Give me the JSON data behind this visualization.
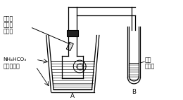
{
  "bg_color": "#ffffff",
  "line_color": "#000000",
  "labels": {
    "dry_line1": "干燥的",
    "dry_line2": "红色石",
    "dry_line3": "蕊试纸",
    "nh4hco3": "NH₄HCO₃",
    "quicklime": "生石灰和水",
    "A": "A",
    "clear": "澄清",
    "limewater": "石灰水",
    "B": "B"
  }
}
